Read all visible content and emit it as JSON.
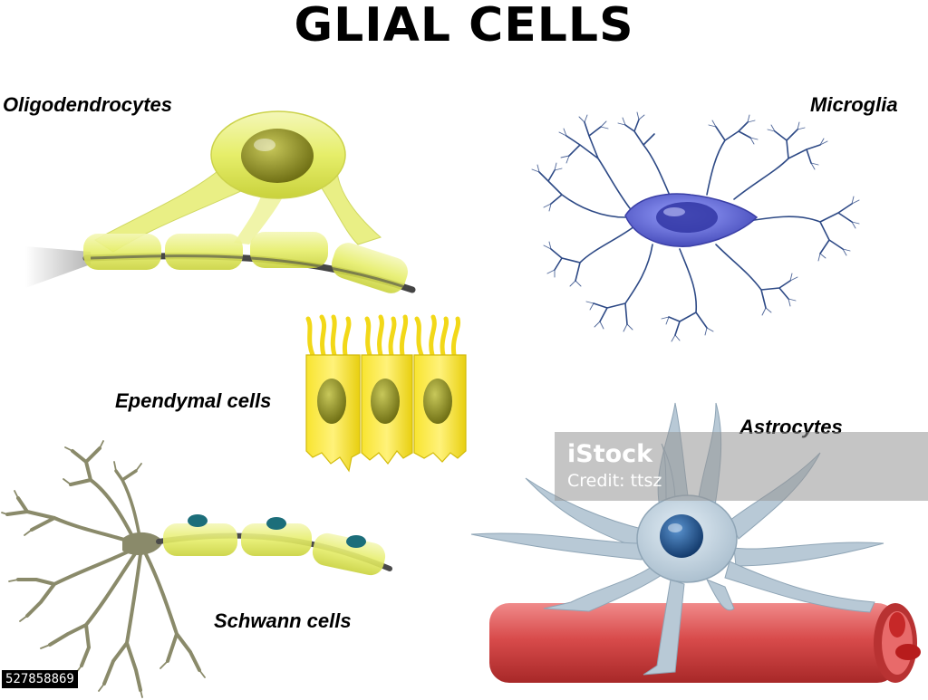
{
  "title": "GLIAL CELLS",
  "labels": {
    "oligodendrocytes": "Oligodendrocytes",
    "microglia": "Microglia",
    "ependymal": "Ependymal cells",
    "astrocytes": "Astrocytes",
    "schwann": "Schwann cells"
  },
  "watermark": {
    "brand": "iStock",
    "credit": "Credit: ttsz",
    "stock_id": "527858869"
  },
  "colors": {
    "myelin_yellow": "#eaf07a",
    "ependymal_yellow": "#f5e526",
    "nucleus_olive": "#8a8a22",
    "microglia_blue": "#4a4fc0",
    "microglia_branch": "#2e4a86",
    "astrocyte_grey": "#b8c9d6",
    "astro_nucleus": "#1d4e86",
    "vessel_red": "#d84b4b",
    "axon_dark": "#3c3c3c",
    "schwann_nucleus": "#1c6e7a"
  }
}
